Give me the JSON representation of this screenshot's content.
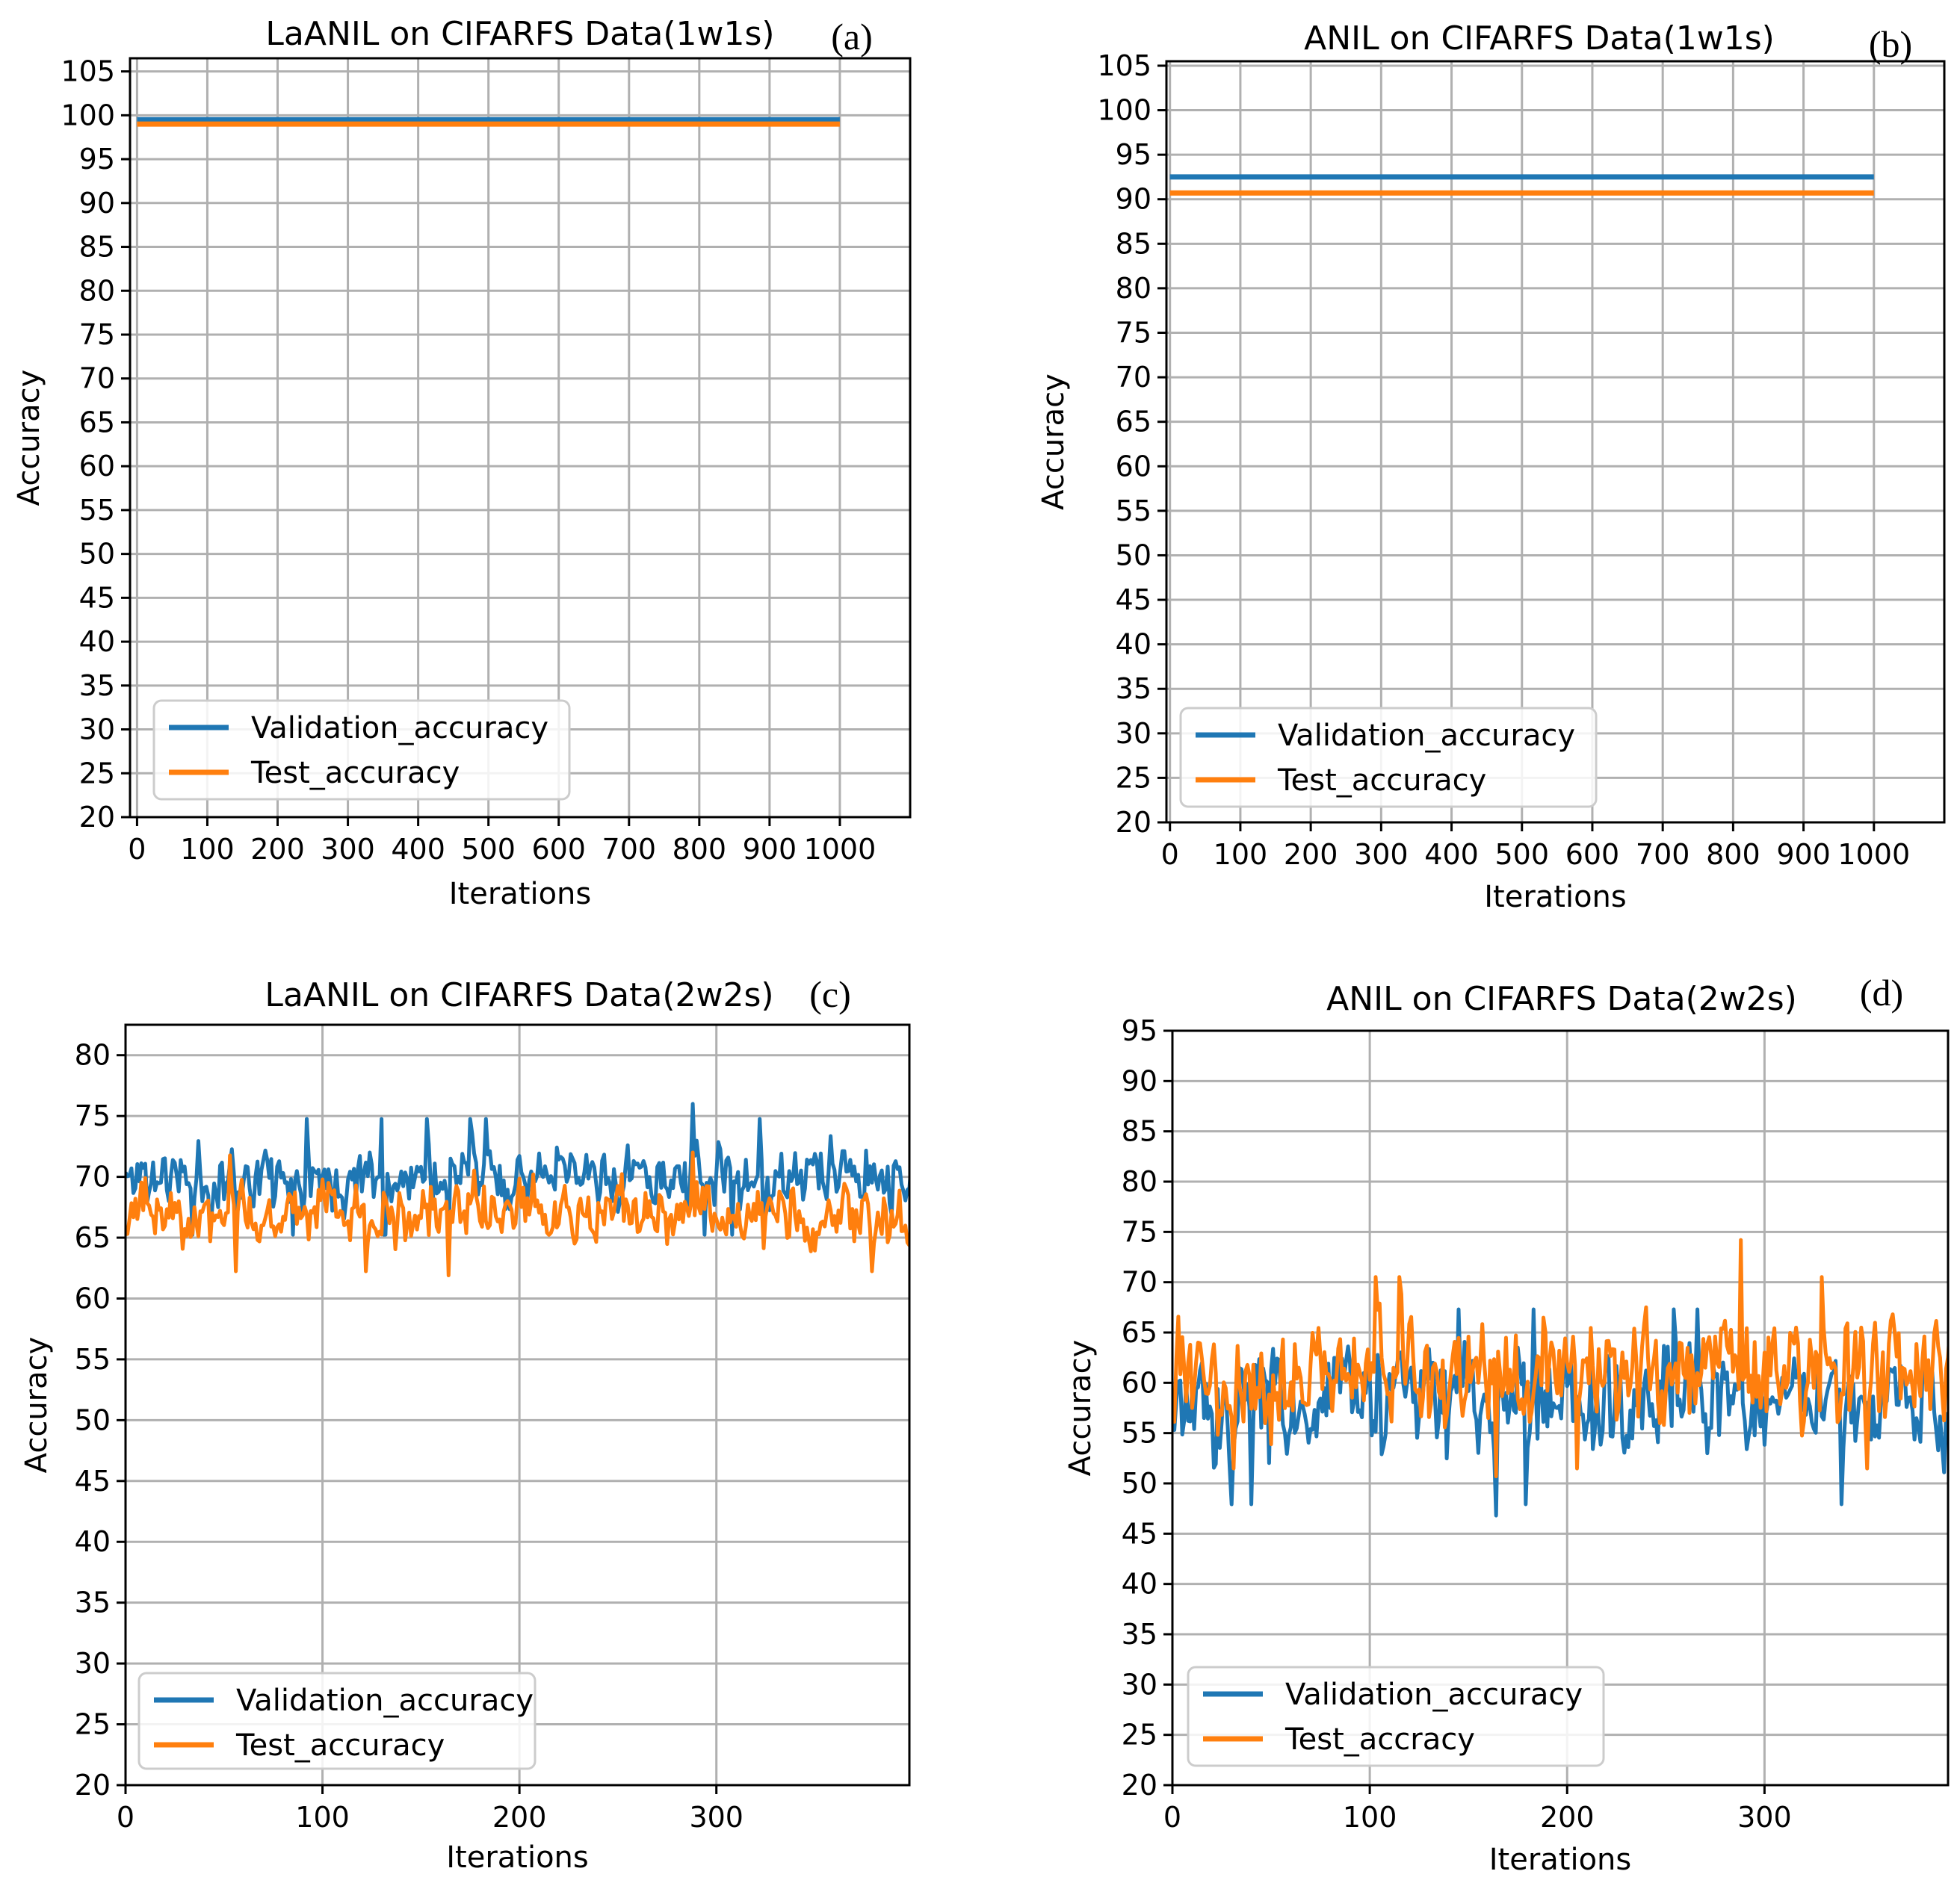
{
  "figure": {
    "colors": {
      "validation": "#1f77b4",
      "test": "#ff7f0e",
      "grid": "#b0b0b0",
      "axis": "#000000"
    }
  },
  "chart_data": [
    {
      "type": "line",
      "panel": "(a)",
      "title": "LaANIL on CIFARFS Data(1w1s)",
      "xlabel": "Iterations",
      "ylabel": "Accuracy",
      "xlim": [
        -10,
        1100
      ],
      "ylim": [
        20,
        106.5
      ],
      "xticks": [
        0,
        100,
        200,
        300,
        400,
        500,
        600,
        700,
        800,
        900,
        1000
      ],
      "yticks": [
        20,
        25,
        30,
        35,
        40,
        45,
        50,
        55,
        60,
        65,
        70,
        75,
        80,
        85,
        90,
        95,
        100,
        105
      ],
      "grid": true,
      "legend_position": "lower-left",
      "series": [
        {
          "name": "Validation_accuracy",
          "color": "#1f77b4",
          "x": [
            0,
            1000
          ],
          "values": [
            99.5,
            99.5
          ]
        },
        {
          "name": "Test_accuracy",
          "color": "#ff7f0e",
          "x": [
            0,
            1000
          ],
          "values": [
            99.0,
            99.0
          ]
        }
      ]
    },
    {
      "type": "line",
      "panel": "(b)",
      "title": "ANIL on CIFARFS Data(1w1s)",
      "xlabel": "Iterations",
      "ylabel": "Accuracy",
      "xlim": [
        -5,
        1100
      ],
      "ylim": [
        20,
        105.5
      ],
      "xticks": [
        0,
        100,
        200,
        300,
        400,
        500,
        600,
        700,
        800,
        900,
        1000
      ],
      "yticks": [
        20,
        25,
        30,
        35,
        40,
        45,
        50,
        55,
        60,
        65,
        70,
        75,
        80,
        85,
        90,
        95,
        100,
        105
      ],
      "grid": true,
      "legend_position": "lower-left",
      "series": [
        {
          "name": "Validation_accuracy",
          "color": "#1f77b4",
          "x": [
            0,
            1000
          ],
          "values": [
            92.5,
            92.5
          ]
        },
        {
          "name": "Test_accuracy",
          "color": "#ff7f0e",
          "x": [
            0,
            1000
          ],
          "values": [
            90.7,
            90.7
          ]
        }
      ]
    },
    {
      "type": "line",
      "panel": "(c)",
      "title": "LaANIL on CIFARFS Data(2w2s)",
      "xlabel": "Iterations",
      "ylabel": "Accuracy",
      "xlim": [
        0,
        398
      ],
      "ylim": [
        20,
        82.5
      ],
      "xticks": [
        0,
        100,
        200,
        300
      ],
      "yticks": [
        20,
        25,
        30,
        35,
        40,
        45,
        50,
        55,
        60,
        65,
        70,
        75,
        80
      ],
      "grid": true,
      "legend_position": "lower-left",
      "series": [
        {
          "name": "Validation_accuracy",
          "color": "#1f77b4",
          "n": 400,
          "mean": 70,
          "sd": 1.7,
          "min": 63.8,
          "max": 76.0,
          "seed": 11
        },
        {
          "name": "Test_accuracy",
          "color": "#ff7f0e",
          "n": 400,
          "mean": 67,
          "sd": 1.7,
          "min": 61.9,
          "max": 72.0,
          "seed": 23
        }
      ]
    },
    {
      "type": "line",
      "panel": "(d)",
      "title": "ANIL on CIFARFS Data(2w2s)",
      "xlabel": "Iterations",
      "ylabel": "Accuracy",
      "xlim": [
        0,
        393
      ],
      "ylim": [
        20,
        95
      ],
      "xticks": [
        0,
        100,
        200,
        300
      ],
      "yticks": [
        20,
        25,
        30,
        35,
        40,
        45,
        50,
        55,
        60,
        65,
        70,
        75,
        80,
        85,
        90,
        95
      ],
      "grid": true,
      "legend_position": "lower-left",
      "series": [
        {
          "name": "Validation_accuracy",
          "color": "#1f77b4",
          "n": 400,
          "mean": 58,
          "sd": 3.6,
          "min": 46.8,
          "max": 67.3,
          "seed": 37
        },
        {
          "name": "Test_accracy",
          "color": "#ff7f0e",
          "n": 400,
          "mean": 61,
          "sd": 3.4,
          "min": 50.7,
          "max": 74.2,
          "seed": 53
        }
      ]
    }
  ]
}
